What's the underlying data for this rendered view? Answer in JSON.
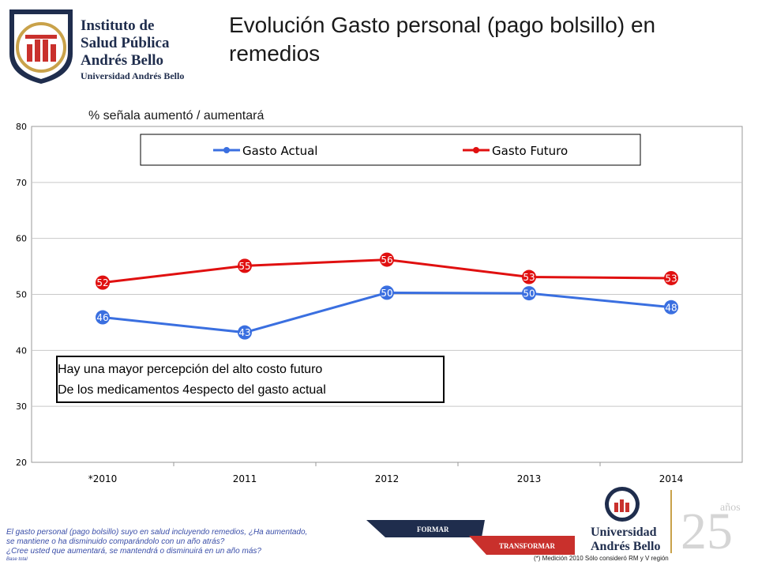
{
  "header": {
    "logo_text_lines": [
      "Instituto de",
      "Salud Pública",
      "Andrés Bello"
    ],
    "logo_subtext": "Universidad Andrés Bello",
    "title": "Evolución Gasto personal (pago bolsillo) en remedios"
  },
  "chart_data": {
    "type": "line",
    "title": "",
    "subtitle": "% señala aumentó / aumentará",
    "categories": [
      "*2010",
      "2011",
      "2012",
      "2013",
      "2014"
    ],
    "series": [
      {
        "name": "Gasto Actual",
        "color": "#3a6fe0",
        "values": [
          46,
          43,
          50,
          50,
          48
        ],
        "positions": [
          45.9,
          43.2,
          50.3,
          50.2,
          47.7
        ]
      },
      {
        "name": "Gasto Futuro",
        "color": "#e01010",
        "values": [
          52,
          55,
          56,
          53,
          53
        ],
        "positions": [
          52.1,
          55.1,
          56.2,
          53.1,
          52.9
        ]
      }
    ],
    "ylim": [
      20,
      80
    ],
    "yticks": [
      20,
      30,
      40,
      50,
      60,
      70,
      80
    ],
    "grid": true,
    "legend": "top"
  },
  "note": {
    "lines": [
      "Hay una mayor percepción del alto costo futuro",
      "De los medicamentos 4especto del gasto actual"
    ]
  },
  "footer": {
    "questions": [
      "El gasto personal (pago bolsillo) suyo en salud incluyendo remedios, ¿Ha aumentado,",
      "se mantiene o ha disminuido comparándolo con un año atrás?",
      "¿Cree usted que aumentará, se mantendrá o disminuirá en un año más?"
    ],
    "base": "Base total",
    "banner_formar": "FORMAR",
    "banner_transformar": "TRANSFORMAR",
    "unab_line1": "Universidad",
    "unab_line2": "Andrés Bello",
    "anniversary_number": "25",
    "anniversary_word": "años",
    "measurement_note": "(*) Medición 2010 Sólo consideró RM y V región"
  }
}
